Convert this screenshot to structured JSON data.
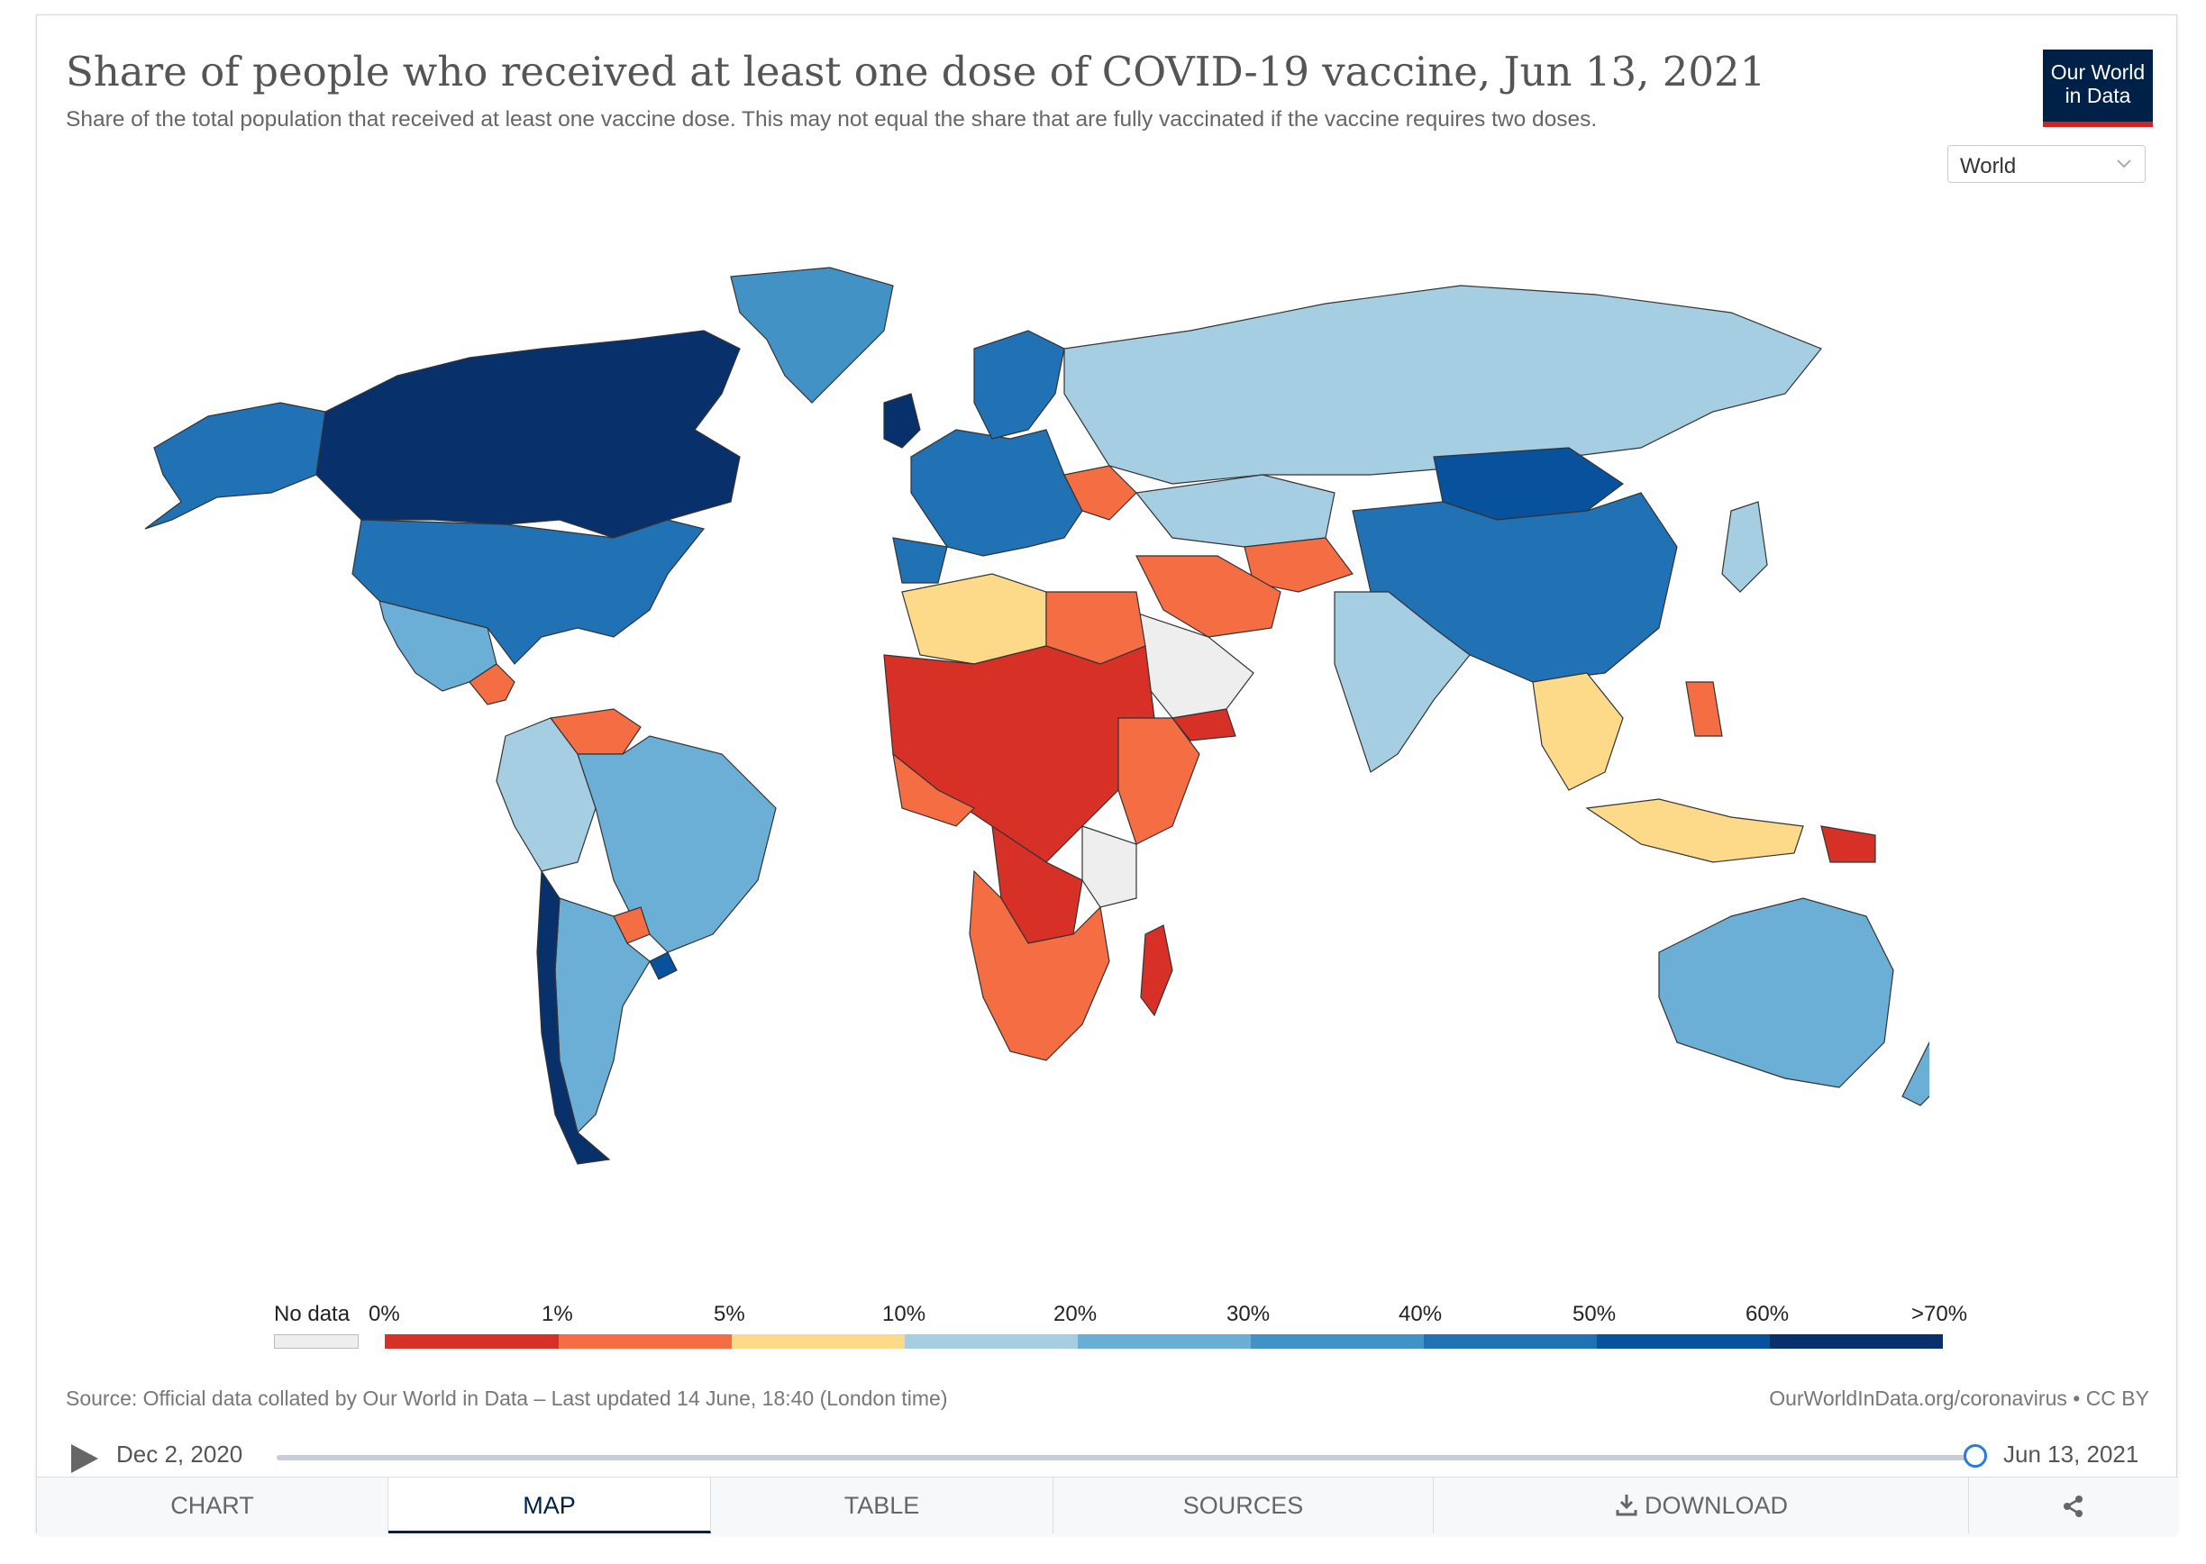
{
  "header": {
    "title": "Share of people who received at least one dose of COVID-19 vaccine, Jun 13, 2021",
    "subtitle": "Share of the total population that received at least one vaccine dose. This may not equal the share that are fully vaccinated if the vaccine requires two doses.",
    "logo_line1": "Our World",
    "logo_line2": "in Data",
    "region_select": "World"
  },
  "colors": {
    "no_data": "#eeeeee",
    "bins": [
      "#d73027",
      "#f46d43",
      "#fdd98a",
      "#a6cee3",
      "#6baed6",
      "#4292c6",
      "#2171b5",
      "#08519c",
      "#08306b"
    ]
  },
  "legend": {
    "no_data_label": "No data",
    "ticks": [
      "0%",
      "1%",
      "5%",
      "10%",
      "20%",
      "30%",
      "40%",
      "50%",
      "60%",
      ">70%"
    ]
  },
  "footer": {
    "source": "Source: Official data collated by Our World in Data – Last updated 14 June, 18:40 (London time)",
    "url": "OurWorldInData.org/coronavirus • CC BY"
  },
  "timeline": {
    "start": "Dec 2, 2020",
    "end": "Jun 13, 2021",
    "progress": 1.0
  },
  "tabs": [
    {
      "label": "CHART",
      "active": false
    },
    {
      "label": "MAP",
      "active": true
    },
    {
      "label": "TABLE",
      "active": false
    },
    {
      "label": "SOURCES",
      "active": false
    },
    {
      "label": "DOWNLOAD",
      "active": false
    },
    {
      "label": "",
      "active": false
    }
  ],
  "map_regions": {
    "north_america_canada": ">70%",
    "usa": "50%",
    "greenland": "30%",
    "alaska": "50%",
    "mexico": "20%",
    "brazil": "20%",
    "chile": ">70%",
    "argentina": "20%",
    "russia": "10%",
    "china": "40%",
    "mongolia": "50%",
    "india": "10%",
    "australia": "20%",
    "africa_central": "0%",
    "africa_south": "1%",
    "europe": "40%",
    "indonesia": "5%"
  }
}
